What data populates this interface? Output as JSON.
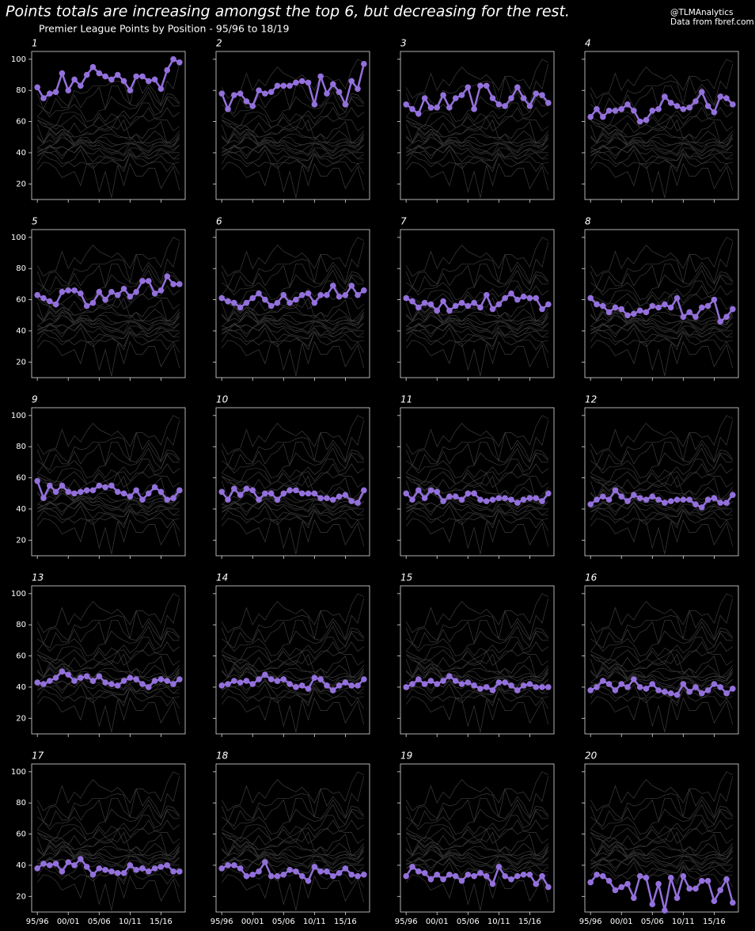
{
  "chart_data": {
    "type": "line",
    "title": "Points totals are increasing amongst the top 6, but decreasing for the rest.",
    "subtitle": "Premier League Points by Position - 95/96 to 18/19",
    "annotations": [
      "@TLMAnalytics",
      "Data from fbref.com"
    ],
    "categories": [
      "95/96",
      null,
      null,
      null,
      null,
      "00/01",
      null,
      null,
      null,
      null,
      "05/06",
      null,
      null,
      null,
      null,
      "10/11",
      null,
      null,
      null,
      null,
      "15/16",
      null,
      null,
      null
    ],
    "ylim": [
      10,
      105
    ],
    "yticks": [
      20,
      40,
      60,
      80,
      100
    ],
    "context_color": "#3c3c3c",
    "series": [
      {
        "name": "1",
        "color": "#9370db",
        "values": [
          82,
          75,
          78,
          79,
          91,
          80,
          87,
          83,
          90,
          95,
          91,
          89,
          87,
          90,
          86,
          80,
          89,
          89,
          86,
          87,
          81,
          93,
          100,
          98
        ]
      },
      {
        "name": "2",
        "color": "#9370db",
        "values": [
          78,
          68,
          77,
          78,
          73,
          70,
          80,
          78,
          79,
          83,
          83,
          83,
          85,
          86,
          85,
          71,
          89,
          78,
          84,
          79,
          71,
          86,
          81,
          97
        ]
      },
      {
        "name": "3",
        "color": "#9370db",
        "values": [
          71,
          68,
          65,
          75,
          69,
          69,
          77,
          69,
          75,
          77,
          82,
          68,
          83,
          83,
          75,
          71,
          70,
          75,
          82,
          75,
          70,
          78,
          77,
          72
        ]
      },
      {
        "name": "4",
        "color": "#9370db",
        "values": [
          63,
          68,
          63,
          67,
          67,
          68,
          71,
          67,
          60,
          61,
          67,
          68,
          76,
          72,
          70,
          68,
          69,
          73,
          79,
          70,
          66,
          76,
          75,
          71
        ]
      },
      {
        "name": "5",
        "color": "#9370db",
        "values": [
          63,
          61,
          59,
          57,
          65,
          66,
          66,
          64,
          56,
          58,
          65,
          60,
          65,
          63,
          67,
          62,
          65,
          72,
          72,
          64,
          66,
          75,
          70,
          70
        ]
      },
      {
        "name": "6",
        "color": "#9370db",
        "values": [
          61,
          59,
          58,
          55,
          58,
          61,
          64,
          60,
          56,
          58,
          63,
          58,
          60,
          63,
          64,
          58,
          63,
          63,
          69,
          62,
          63,
          69,
          63,
          66
        ]
      },
      {
        "name": "7",
        "color": "#9370db",
        "values": [
          61,
          59,
          55,
          58,
          57,
          53,
          59,
          53,
          56,
          58,
          56,
          58,
          55,
          63,
          54,
          57,
          61,
          64,
          60,
          62,
          61,
          61,
          54,
          57
        ]
      },
      {
        "name": "8",
        "color": "#9370db",
        "values": [
          61,
          57,
          56,
          52,
          55,
          54,
          50,
          51,
          53,
          52,
          56,
          55,
          57,
          55,
          61,
          49,
          52,
          49,
          55,
          56,
          60,
          46,
          49,
          54
        ]
      },
      {
        "name": "9",
        "color": "#9370db",
        "values": [
          58,
          47,
          55,
          51,
          55,
          51,
          50,
          51,
          52,
          52,
          55,
          54,
          55,
          51,
          50,
          48,
          52,
          46,
          50,
          54,
          51,
          46,
          47,
          52
        ]
      },
      {
        "name": "10",
        "color": "#9370db",
        "values": [
          51,
          46,
          53,
          49,
          53,
          52,
          46,
          50,
          50,
          46,
          50,
          52,
          52,
          50,
          50,
          50,
          47,
          47,
          46,
          48,
          49,
          45,
          44,
          52
        ]
      },
      {
        "name": "11",
        "color": "#9370db",
        "values": [
          50,
          46,
          52,
          47,
          52,
          51,
          45,
          48,
          48,
          46,
          50,
          50,
          46,
          45,
          46,
          47,
          47,
          46,
          44,
          46,
          47,
          47,
          45,
          50
        ]
      },
      {
        "name": "12",
        "color": "#9370db",
        "values": [
          43,
          46,
          48,
          46,
          52,
          48,
          45,
          49,
          47,
          46,
          48,
          46,
          44,
          45,
          46,
          46,
          46,
          43,
          41,
          46,
          47,
          44,
          44,
          49
        ]
      },
      {
        "name": "13",
        "color": "#9370db",
        "values": [
          43,
          42,
          44,
          46,
          50,
          48,
          44,
          46,
          47,
          44,
          47,
          43,
          42,
          41,
          44,
          46,
          45,
          42,
          40,
          44,
          45,
          44,
          42,
          45
        ]
      },
      {
        "name": "14",
        "color": "#9370db",
        "values": [
          41,
          42,
          44,
          43,
          44,
          42,
          45,
          48,
          45,
          44,
          45,
          42,
          40,
          41,
          39,
          46,
          45,
          41,
          38,
          41,
          43,
          41,
          41,
          45
        ]
      },
      {
        "name": "15",
        "color": "#9370db",
        "values": [
          40,
          42,
          45,
          42,
          44,
          42,
          44,
          47,
          44,
          42,
          43,
          41,
          39,
          40,
          38,
          43,
          43,
          41,
          38,
          41,
          42,
          40,
          40,
          40
        ]
      },
      {
        "name": "16",
        "color": "#9370db",
        "values": [
          38,
          40,
          44,
          42,
          38,
          42,
          40,
          45,
          40,
          39,
          42,
          38,
          37,
          36,
          35,
          42,
          37,
          40,
          36,
          38,
          42,
          40,
          36,
          39
        ]
      },
      {
        "name": "17",
        "color": "#9370db",
        "values": [
          38,
          41,
          40,
          41,
          36,
          42,
          40,
          44,
          39,
          34,
          38,
          37,
          36,
          35,
          35,
          40,
          37,
          38,
          36,
          38,
          39,
          40,
          36,
          36
        ]
      },
      {
        "name": "18",
        "color": "#9370db",
        "values": [
          38,
          40,
          40,
          38,
          33,
          34,
          36,
          42,
          33,
          33,
          34,
          37,
          36,
          33,
          30,
          39,
          36,
          36,
          33,
          35,
          38,
          34,
          33,
          34
        ]
      },
      {
        "name": "19",
        "color": "#9370db",
        "values": [
          33,
          39,
          36,
          35,
          31,
          34,
          31,
          34,
          33,
          30,
          34,
          33,
          35,
          33,
          28,
          39,
          33,
          31,
          33,
          34,
          34,
          28,
          33,
          26
        ]
      },
      {
        "name": "20",
        "color": "#9370db",
        "values": [
          29,
          34,
          33,
          30,
          24,
          26,
          28,
          19,
          33,
          32,
          15,
          28,
          11,
          32,
          19,
          33,
          25,
          25,
          30,
          30,
          17,
          24,
          31,
          16
        ]
      }
    ]
  }
}
